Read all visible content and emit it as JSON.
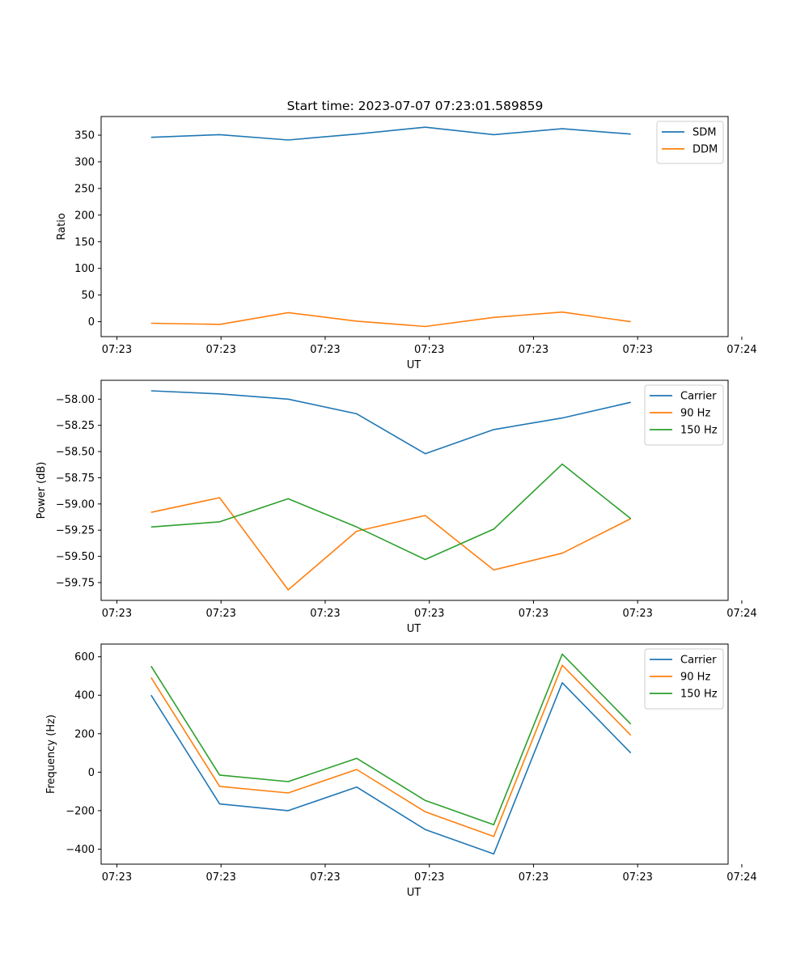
{
  "title": "Start time: 2023-07-07 07:23:01.589859",
  "chart_data": [
    {
      "type": "line",
      "title": "Start time: 2023-07-07 07:23:01.589859",
      "xlabel": "UT",
      "ylabel": "Ratio",
      "ylim": [
        -28,
        385
      ],
      "xlim": [
        -0.23,
        8.92
      ],
      "x": [
        0.5,
        1.5,
        2.5,
        3.5,
        4.5,
        5.5,
        6.5,
        7.5
      ],
      "xticks": [
        0,
        1.52,
        3.04,
        4.56,
        6.08,
        7.6,
        9.12
      ],
      "xtick_labels": [
        "07:23",
        "07:23",
        "07:23",
        "07:23",
        "07:23",
        "07:23",
        "07:24"
      ],
      "yticks": [
        0,
        50,
        100,
        150,
        200,
        250,
        300,
        350
      ],
      "ytick_labels": [
        "0",
        "50",
        "100",
        "150",
        "200",
        "250",
        "300",
        "350"
      ],
      "legend_position": "top-right",
      "series": [
        {
          "name": "SDM",
          "color": "#1f77b4",
          "values": [
            346,
            351,
            341,
            352,
            365,
            351,
            362,
            352
          ]
        },
        {
          "name": "DDM",
          "color": "#ff7f0e",
          "values": [
            -3,
            -5,
            17,
            1,
            -9,
            8,
            18,
            0
          ]
        }
      ]
    },
    {
      "type": "line",
      "title": "",
      "xlabel": "UT",
      "ylabel": "Power (dB)",
      "ylim": [
        -59.92,
        -57.82
      ],
      "xlim": [
        -0.23,
        8.92
      ],
      "x": [
        0.5,
        1.5,
        2.5,
        3.5,
        4.5,
        5.5,
        6.5,
        7.5
      ],
      "xticks": [
        0,
        1.52,
        3.04,
        4.56,
        6.08,
        7.6,
        9.12
      ],
      "xtick_labels": [
        "07:23",
        "07:23",
        "07:23",
        "07:23",
        "07:23",
        "07:23",
        "07:24"
      ],
      "yticks": [
        -58.0,
        -58.25,
        -58.5,
        -58.75,
        -59.0,
        -59.25,
        -59.5,
        -59.75
      ],
      "ytick_labels": [
        "−58.00",
        "−58.25",
        "−58.50",
        "−58.75",
        "−59.00",
        "−59.25",
        "−59.50",
        "−59.75"
      ],
      "legend_position": "top-right",
      "series": [
        {
          "name": "Carrier",
          "color": "#1f77b4",
          "values": [
            -57.92,
            -57.95,
            -58.0,
            -58.14,
            -58.52,
            -58.29,
            -58.18,
            -58.03
          ]
        },
        {
          "name": "90 Hz",
          "color": "#ff7f0e",
          "values": [
            -59.08,
            -58.94,
            -59.82,
            -59.26,
            -59.11,
            -59.63,
            -59.47,
            -59.14
          ]
        },
        {
          "name": "150 Hz",
          "color": "#2ca02c",
          "values": [
            -59.22,
            -59.17,
            -58.95,
            -59.22,
            -59.53,
            -59.24,
            -58.62,
            -59.14
          ]
        }
      ]
    },
    {
      "type": "line",
      "title": "",
      "xlabel": "UT",
      "ylabel": "Frequency (Hz)",
      "ylim": [
        -478,
        666
      ],
      "xlim": [
        -0.23,
        8.92
      ],
      "x": [
        0.5,
        1.5,
        2.5,
        3.5,
        4.5,
        5.5,
        6.5,
        7.5
      ],
      "xticks": [
        0,
        1.52,
        3.04,
        4.56,
        6.08,
        7.6,
        9.12
      ],
      "xtick_labels": [
        "07:23",
        "07:23",
        "07:23",
        "07:23",
        "07:23",
        "07:23",
        "07:24"
      ],
      "yticks": [
        600,
        400,
        200,
        0,
        -200,
        -400
      ],
      "ytick_labels": [
        "600",
        "400",
        "200",
        "0",
        "−200",
        "−400"
      ],
      "legend_position": "top-right",
      "series": [
        {
          "name": "Carrier",
          "color": "#1f77b4",
          "values": [
            400,
            -165,
            -200,
            -77,
            -298,
            -425,
            465,
            100
          ]
        },
        {
          "name": "90 Hz",
          "color": "#ff7f0e",
          "values": [
            492,
            -74,
            -108,
            14,
            -206,
            -334,
            556,
            192
          ]
        },
        {
          "name": "150 Hz",
          "color": "#2ca02c",
          "values": [
            551,
            -15,
            -49,
            72,
            -147,
            -273,
            614,
            250
          ]
        }
      ]
    }
  ]
}
